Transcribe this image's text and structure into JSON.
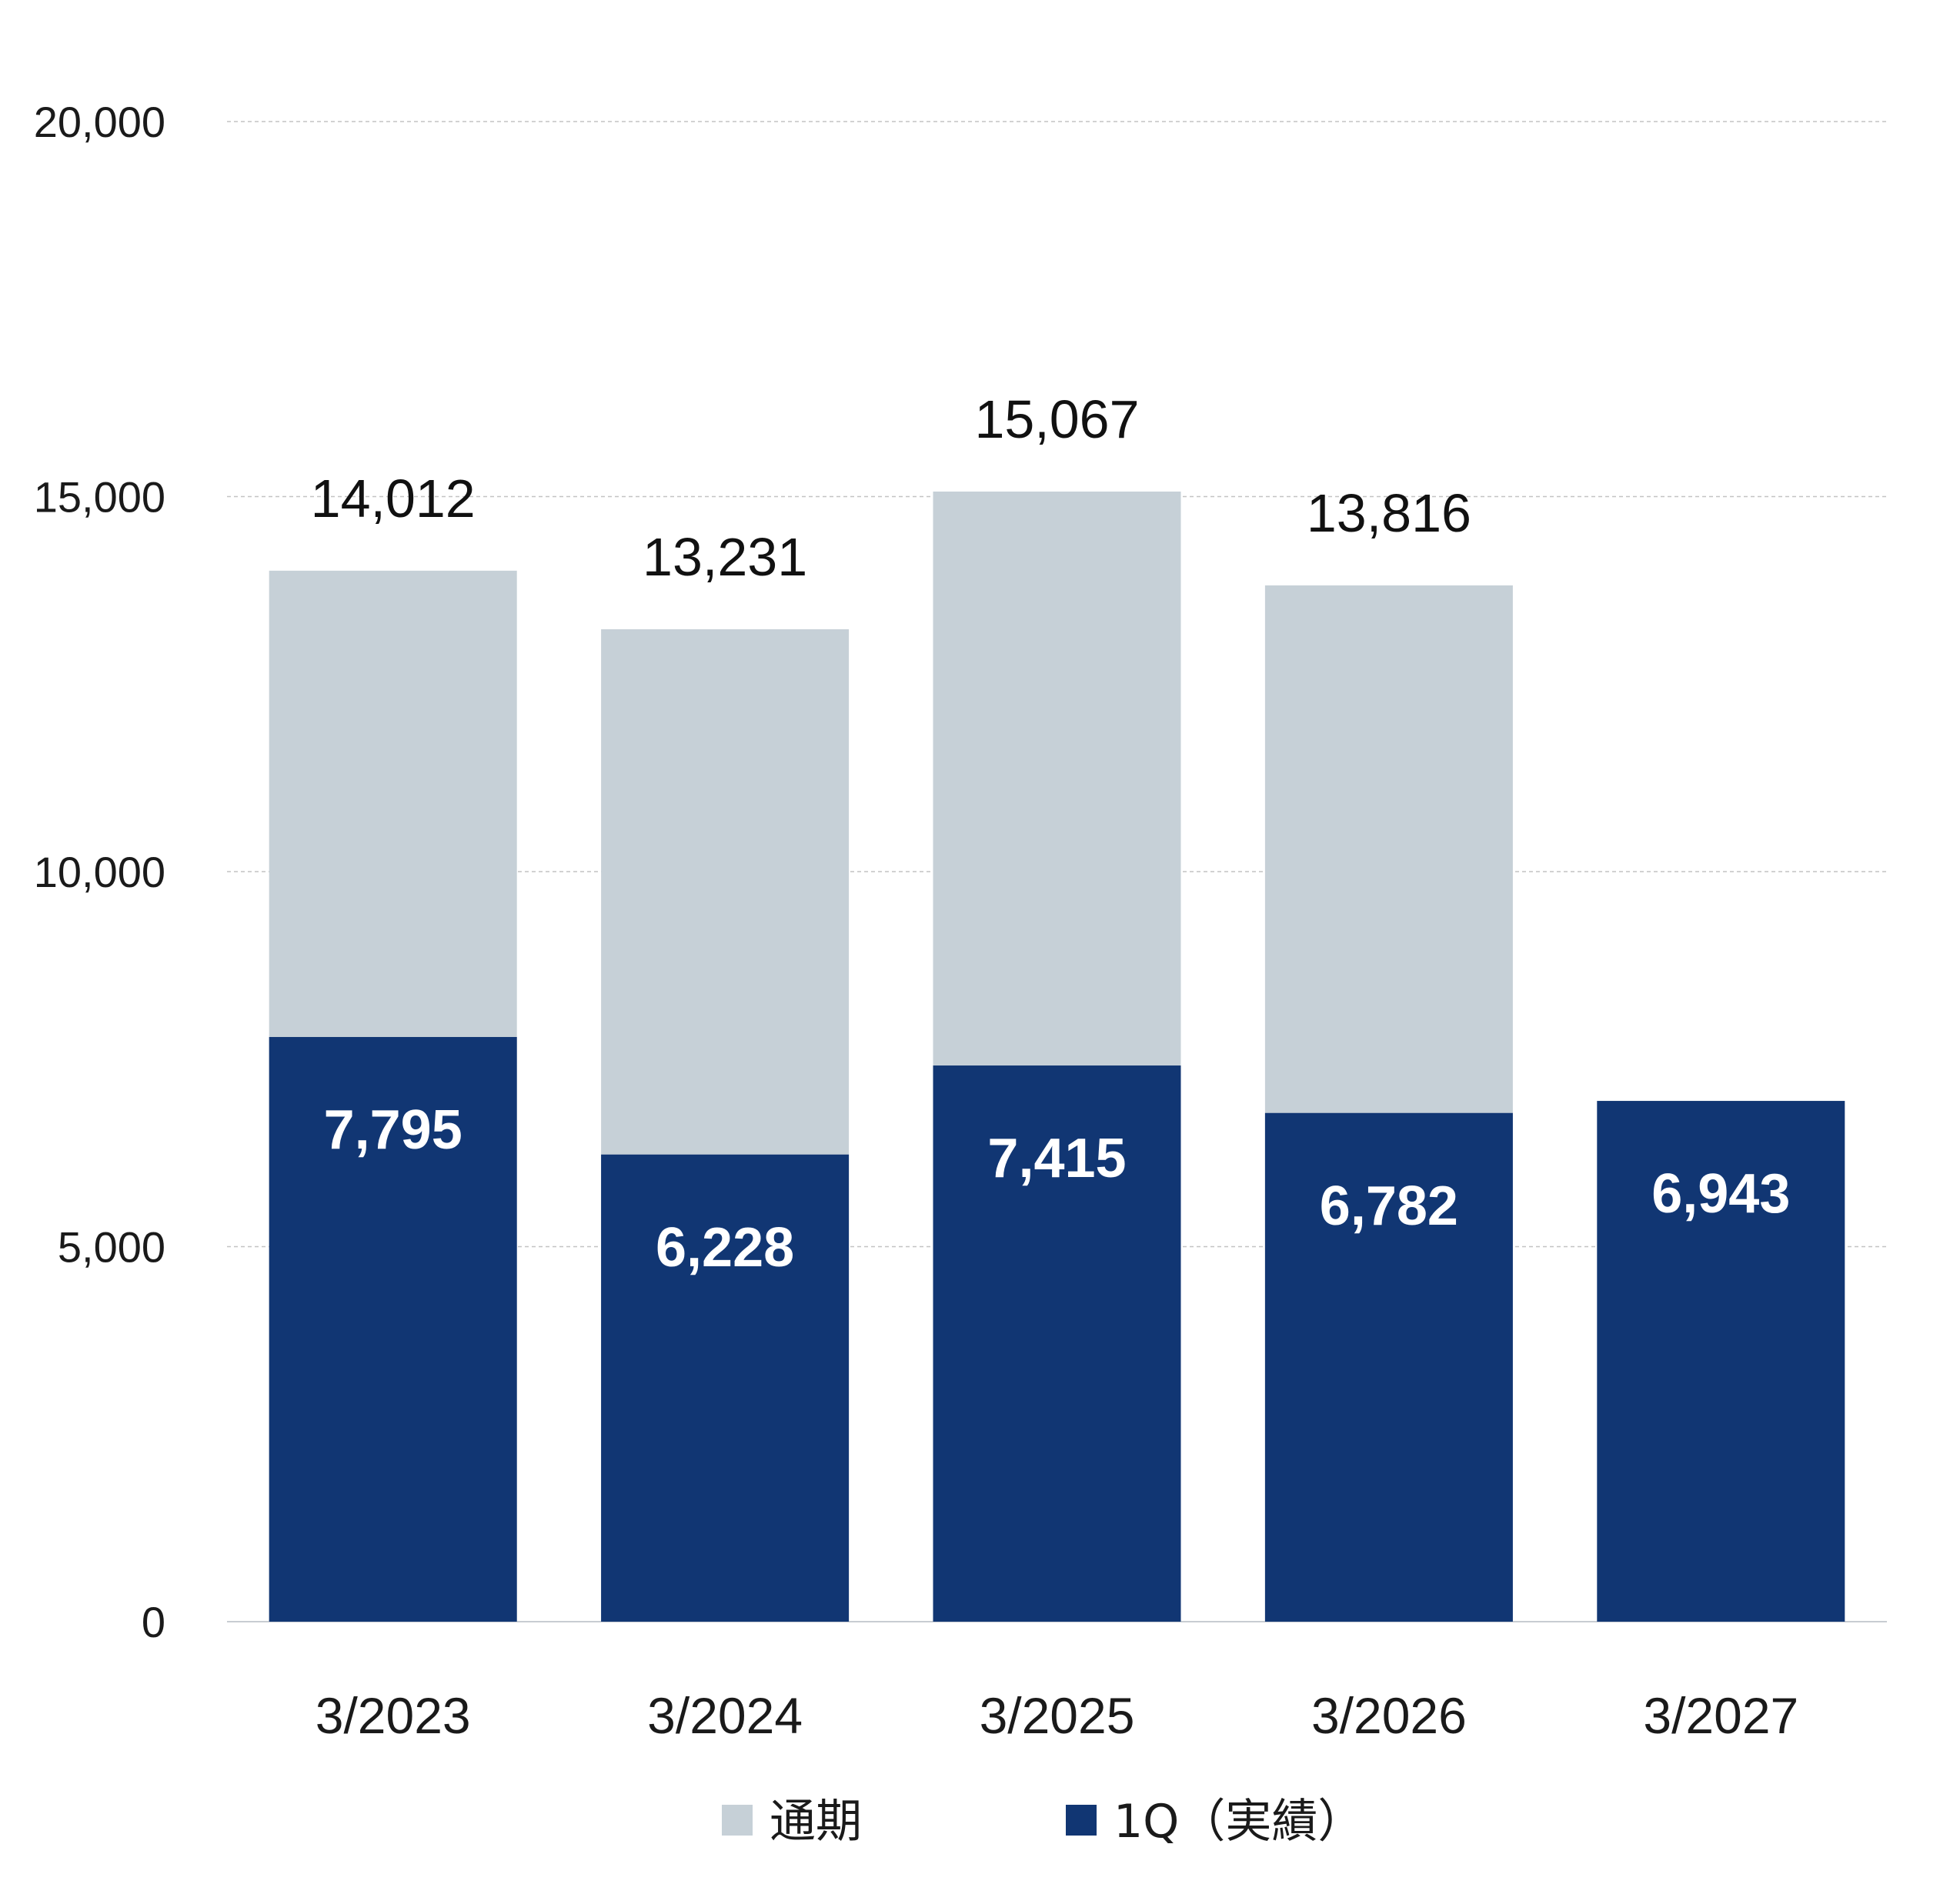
{
  "chart_data": {
    "type": "bar",
    "stacking": "overlay",
    "categories": [
      "3/2023",
      "3/2024",
      "3/2025",
      "3/2026",
      "3/2027"
    ],
    "series": [
      {
        "name": "通期",
        "color": "#c6d0d7",
        "values": [
          14012,
          13231,
          15067,
          13816,
          null
        ]
      },
      {
        "name": "1Q（実績）",
        "color": "#113673",
        "values": [
          7795,
          6228,
          7415,
          6782,
          6943
        ]
      }
    ],
    "total_labels": [
      "14,012",
      "13,231",
      "15,067",
      "13,816",
      ""
    ],
    "inner_labels": [
      "7,795",
      "6,228",
      "7,415",
      "6,782",
      "6,943"
    ],
    "y_ticks": [
      0,
      5000,
      10000,
      15000,
      20000
    ],
    "y_tick_labels": [
      "0",
      "5,000",
      "10,000",
      "15,000",
      "20,000"
    ],
    "ylim": [
      0,
      20000
    ],
    "grid": "dashed horizontal",
    "legend_position": "bottom-center",
    "title": "",
    "xlabel": "",
    "ylabel": ""
  }
}
